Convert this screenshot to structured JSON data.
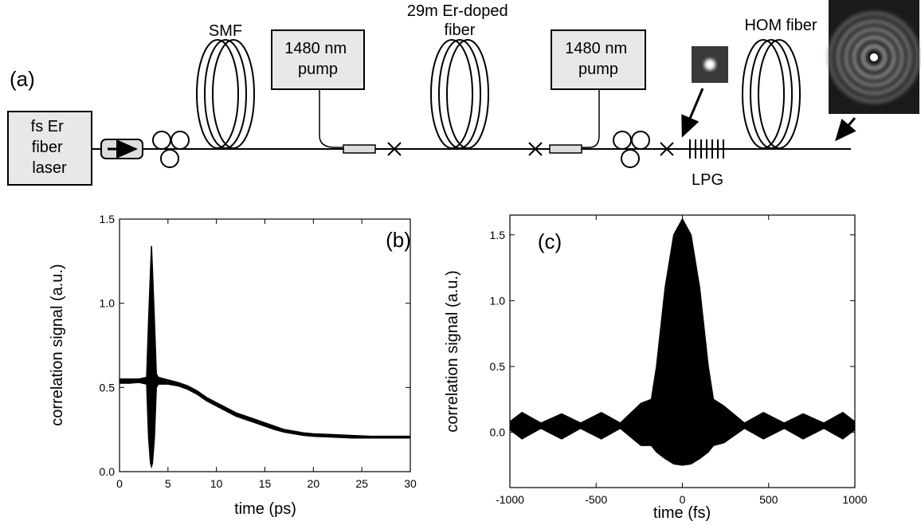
{
  "diagram": {
    "panel_label": "(a)",
    "laser": [
      "fs Er",
      "fiber",
      "laser"
    ],
    "smf": "SMF",
    "pump1": [
      "1480 nm",
      "pump"
    ],
    "er_fiber": [
      "29m Er-doped",
      "fiber"
    ],
    "pump2": [
      "1480 nm",
      "pump"
    ],
    "hom_fiber": "HOM fiber",
    "lpg": "LPG"
  },
  "chart_data": [
    {
      "type": "band",
      "annotation": "(b)",
      "x_label": "time (ps)",
      "y_label": "correlation signal (a.u.)",
      "xlim": [
        0,
        30
      ],
      "xticks": [
        0,
        5,
        10,
        15,
        20,
        25,
        30
      ],
      "ylim": [
        0,
        1.5
      ],
      "yticks": [
        {
          "value": 0,
          "label": "0.0"
        },
        0.5,
        {
          "value": 1,
          "label": "1.0"
        },
        1.5
      ],
      "x": [
        0,
        1,
        2,
        2.8,
        3.0,
        3.2,
        3.3,
        3.4,
        3.6,
        3.8,
        4,
        5,
        6,
        7,
        8,
        9,
        10,
        11,
        12,
        13,
        14,
        15,
        16,
        17,
        18,
        19,
        20,
        22,
        24,
        26,
        28,
        30
      ],
      "series": [
        {
          "color": "#000000",
          "values": [
            0.55,
            0.55,
            0.55,
            0.56,
            0.9,
            1.2,
            1.34,
            1.2,
            0.9,
            0.58,
            0.56,
            0.545,
            0.53,
            0.51,
            0.48,
            0.44,
            0.41,
            0.38,
            0.35,
            0.33,
            0.31,
            0.29,
            0.27,
            0.25,
            0.24,
            0.23,
            0.225,
            0.22,
            0.215,
            0.21,
            0.21,
            0.21
          ]
        },
        {
          "color": "#000000",
          "values": [
            0.525,
            0.525,
            0.53,
            0.52,
            0.2,
            0.05,
            0.03,
            0.05,
            0.2,
            0.5,
            0.52,
            0.52,
            0.51,
            0.49,
            0.46,
            0.42,
            0.39,
            0.36,
            0.33,
            0.31,
            0.29,
            0.27,
            0.25,
            0.235,
            0.225,
            0.215,
            0.21,
            0.205,
            0.2,
            0.2,
            0.2,
            0.2
          ]
        }
      ]
    },
    {
      "type": "band",
      "annotation": "(c)",
      "x_label": "time (fs)",
      "y_label": "correlation signal (a.u.)",
      "xlim": [
        -1000,
        1000
      ],
      "xticks": [
        -1000,
        -500,
        0,
        500,
        1000
      ],
      "ylim": [
        -0.42,
        1.65
      ],
      "yticks": [
        {
          "value": 0,
          "label": "0.0"
        },
        0.5,
        {
          "value": 1,
          "label": "1.0"
        },
        1.5
      ],
      "x": [
        -1000,
        -930,
        -820,
        -700,
        -590,
        -470,
        -360,
        -240,
        -180,
        -150,
        -100,
        -50,
        0,
        50,
        100,
        150,
        180,
        240,
        360,
        470,
        590,
        700,
        820,
        930,
        1000
      ],
      "series": [
        {
          "color": "#000000",
          "values": [
            0.08,
            0.15,
            0.07,
            0.14,
            0.07,
            0.15,
            0.07,
            0.22,
            0.25,
            0.5,
            1.1,
            1.5,
            1.62,
            1.5,
            1.1,
            0.5,
            0.25,
            0.2,
            0.07,
            0.15,
            0.07,
            0.14,
            0.07,
            0.15,
            0.08
          ]
        },
        {
          "color": "#000000",
          "values": [
            0.02,
            -0.05,
            0.03,
            -0.05,
            0.03,
            -0.05,
            0.03,
            -0.1,
            -0.1,
            -0.15,
            -0.2,
            -0.24,
            -0.25,
            -0.24,
            -0.2,
            -0.15,
            -0.1,
            -0.08,
            0.03,
            -0.05,
            0.03,
            -0.05,
            0.03,
            -0.05,
            0.02
          ]
        }
      ]
    }
  ]
}
